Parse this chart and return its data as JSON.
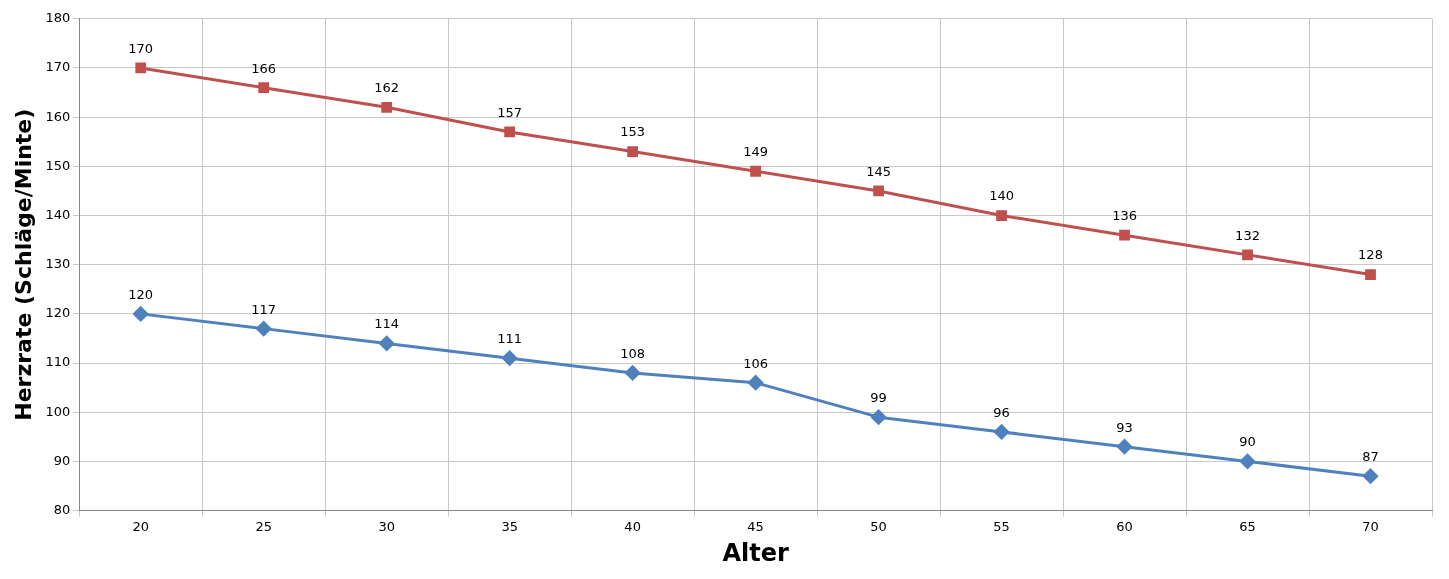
{
  "chart_data": {
    "type": "line",
    "xlabel": "Alter",
    "ylabel": "Herzrate (Schläge/Minte)",
    "categories": [
      "20",
      "25",
      "30",
      "35",
      "40",
      "45",
      "50",
      "55",
      "60",
      "65",
      "70"
    ],
    "series": [
      {
        "color": "#c0504d",
        "marker": "square",
        "values": [
          170,
          166,
          162,
          157,
          153,
          149,
          145,
          140,
          136,
          132,
          128
        ]
      },
      {
        "color": "#4f81bd",
        "marker": "diamond",
        "values": [
          120,
          117,
          114,
          111,
          108,
          106,
          99,
          96,
          93,
          90,
          87
        ]
      }
    ],
    "ylim": [
      80,
      180
    ],
    "yticks": [
      80,
      90,
      100,
      110,
      120,
      130,
      140,
      150,
      160,
      170,
      180
    ],
    "grid": true,
    "legend": false,
    "data_labels": true
  }
}
